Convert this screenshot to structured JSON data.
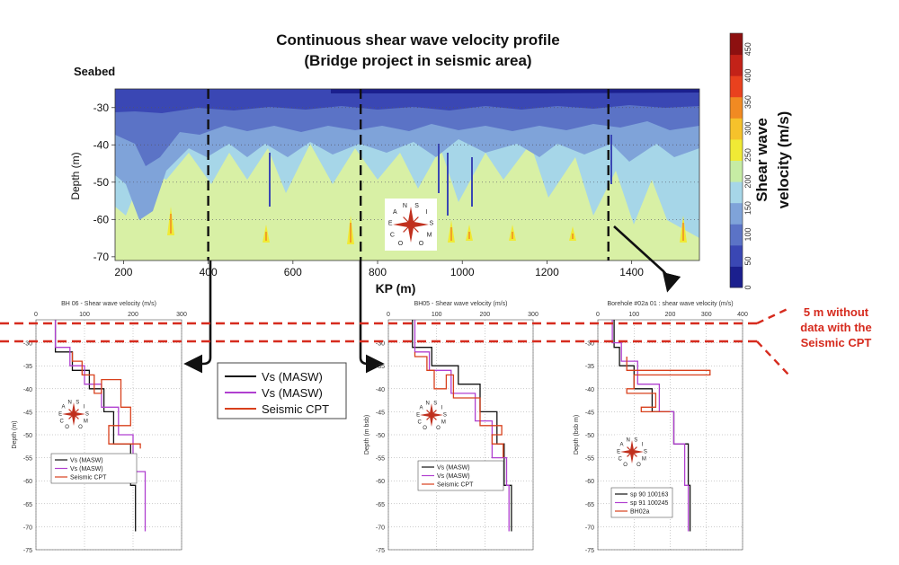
{
  "title_line1": "Continuous shear wave velocity profile",
  "title_line2": "(Bridge project in seismic area)",
  "seabed_label": "Seabed",
  "annotation": [
    "5 m without",
    "data with the",
    "Seismic CPT"
  ],
  "colors": {
    "masw1": "#111111",
    "masw2": "#b040d0",
    "cpt": "#d8401c",
    "annotation": "#d62b1e",
    "scale": [
      "#1b1f8e",
      "#3a47b4",
      "#5b73c6",
      "#7fa3d9",
      "#a6d6e8",
      "#c6eca4",
      "#f0ea35",
      "#f6c22b",
      "#f18a22",
      "#e9411e",
      "#c32218",
      "#8d1010"
    ]
  },
  "compass_text": "OCEAN SISMO",
  "chart_data": [
    {
      "type": "heatmap",
      "title": "Continuous shear wave velocity profile (Bridge project in seismic area)",
      "xlabel": "KP (m)",
      "ylabel": "Depth (m)",
      "xlim": [
        180,
        1560
      ],
      "ylim": [
        -71,
        -25
      ],
      "xticks": [
        "200",
        "400",
        "600",
        "800",
        "1000",
        "1200",
        "1400"
      ],
      "yticks": [
        "-30",
        "-40",
        "-50",
        "-60",
        "-70"
      ],
      "colorbar": {
        "label_line1": "Shear wave",
        "label_line2": "velocity (m/s)",
        "ticks": [
          "0",
          "50",
          "100",
          "150",
          "200",
          "250",
          "300",
          "350",
          "400",
          "450"
        ],
        "range": [
          0,
          480
        ]
      },
      "section_lines_kp": [
        400,
        760,
        1345
      ]
    },
    {
      "type": "line",
      "title": "BH 06 - Shear wave velocity (m/s)",
      "ylabel": "Depth (m)",
      "xlim": [
        0,
        300
      ],
      "ylim": [
        -75,
        -25
      ],
      "xticks": [
        "0",
        "100",
        "200",
        "300"
      ],
      "yticks": [
        "-30",
        "-35",
        "-40",
        "-45",
        "-50",
        "-55",
        "-60",
        "-65",
        "-70",
        "-75"
      ],
      "legend": [
        "Vs (MASW)",
        "Vs (MASW)",
        "Seismic CPT"
      ],
      "series": [
        {
          "name": "Vs (MASW)",
          "points": [
            [
              40,
              -25
            ],
            [
              40,
              -32
            ],
            [
              75,
              -32
            ],
            [
              75,
              -36
            ],
            [
              110,
              -36
            ],
            [
              110,
              -40
            ],
            [
              140,
              -40
            ],
            [
              140,
              -45
            ],
            [
              160,
              -45
            ],
            [
              160,
              -52
            ],
            [
              195,
              -52
            ],
            [
              195,
              -61
            ],
            [
              205,
              -61
            ],
            [
              205,
              -71
            ]
          ]
        },
        {
          "name": "Vs (MASW)",
          "points": [
            [
              40,
              -25
            ],
            [
              40,
              -31
            ],
            [
              70,
              -31
            ],
            [
              70,
              -35
            ],
            [
              100,
              -35
            ],
            [
              100,
              -39
            ],
            [
              135,
              -39
            ],
            [
              135,
              -44
            ],
            [
              170,
              -44
            ],
            [
              170,
              -50
            ],
            [
              200,
              -50
            ],
            [
              200,
              -58
            ],
            [
              225,
              -58
            ],
            [
              225,
              -71
            ]
          ]
        },
        {
          "name": "Seismic CPT",
          "points": [
            [
              75,
              -32
            ],
            [
              75,
              -34
            ],
            [
              95,
              -34
            ],
            [
              95,
              -37
            ],
            [
              120,
              -37
            ],
            [
              120,
              -41
            ],
            [
              135,
              -41
            ],
            [
              135,
              -38
            ],
            [
              175,
              -38
            ],
            [
              175,
              -44
            ],
            [
              195,
              -44
            ],
            [
              195,
              -48
            ],
            [
              150,
              -48
            ],
            [
              150,
              -52
            ],
            [
              215,
              -52
            ],
            [
              215,
              -53
            ]
          ]
        }
      ]
    },
    {
      "type": "line",
      "title": "BH05 - Shear wave velocity (m/s)",
      "ylabel": "Depth (m bsb)",
      "xlim": [
        0,
        300
      ],
      "ylim": [
        -75,
        -25
      ],
      "xticks": [
        "0",
        "100",
        "200",
        "300"
      ],
      "yticks": [
        "-30",
        "-35",
        "-40",
        "-45",
        "-50",
        "-55",
        "-60",
        "-65",
        "-70",
        "-75"
      ],
      "legend": [
        "Vs (MASW)",
        "Vs (MASW)",
        "Seismic CPT"
      ],
      "series": [
        {
          "name": "Vs (MASW)",
          "points": [
            [
              50,
              -25
            ],
            [
              50,
              -31
            ],
            [
              90,
              -31
            ],
            [
              90,
              -35
            ],
            [
              145,
              -35
            ],
            [
              145,
              -39
            ],
            [
              190,
              -39
            ],
            [
              190,
              -45
            ],
            [
              225,
              -45
            ],
            [
              225,
              -52
            ],
            [
              240,
              -52
            ],
            [
              240,
              -61
            ],
            [
              255,
              -61
            ],
            [
              255,
              -71
            ]
          ]
        },
        {
          "name": "Vs (MASW)",
          "points": [
            [
              55,
              -25
            ],
            [
              55,
              -32
            ],
            [
              85,
              -32
            ],
            [
              85,
              -36
            ],
            [
              130,
              -36
            ],
            [
              130,
              -41
            ],
            [
              180,
              -41
            ],
            [
              180,
              -47
            ],
            [
              215,
              -47
            ],
            [
              215,
              -55
            ],
            [
              245,
              -55
            ],
            [
              245,
              -61
            ],
            [
              250,
              -61
            ],
            [
              250,
              -71
            ]
          ]
        },
        {
          "name": "Seismic CPT",
          "points": [
            [
              55,
              -32
            ],
            [
              55,
              -33
            ],
            [
              80,
              -33
            ],
            [
              80,
              -36
            ],
            [
              95,
              -36
            ],
            [
              95,
              -40
            ],
            [
              120,
              -40
            ],
            [
              120,
              -37
            ],
            [
              135,
              -37
            ],
            [
              135,
              -42
            ],
            [
              190,
              -42
            ],
            [
              190,
              -48
            ],
            [
              235,
              -48
            ],
            [
              235,
              -50
            ],
            [
              215,
              -50
            ],
            [
              215,
              -52
            ],
            [
              238,
              -52
            ],
            [
              238,
              -55
            ]
          ]
        }
      ]
    },
    {
      "type": "line",
      "title": "Borehole #02a 01 : shear wave velocity (m/s)",
      "ylabel": "Depth (bsb m)",
      "xlim": [
        0,
        400
      ],
      "ylim": [
        -75,
        -25
      ],
      "xticks": [
        "0",
        "100",
        "200",
        "300",
        "400"
      ],
      "yticks": [
        "-30",
        "-35",
        "-40",
        "-45",
        "-50",
        "-55",
        "-60",
        "-65",
        "-70",
        "-75"
      ],
      "legend": [
        "sp 90 100163",
        "sp 91 100245",
        "BH02a"
      ],
      "series": [
        {
          "name": "sp 90 100163",
          "points": [
            [
              45,
              -25
            ],
            [
              45,
              -31
            ],
            [
              60,
              -31
            ],
            [
              60,
              -35
            ],
            [
              100,
              -35
            ],
            [
              100,
              -40
            ],
            [
              150,
              -40
            ],
            [
              150,
              -45
            ],
            [
              210,
              -45
            ],
            [
              210,
              -52
            ],
            [
              250,
              -52
            ],
            [
              250,
              -61
            ],
            [
              255,
              -61
            ],
            [
              255,
              -71
            ]
          ]
        },
        {
          "name": "sp 91 100245",
          "points": [
            [
              40,
              -25
            ],
            [
              40,
              -30
            ],
            [
              65,
              -30
            ],
            [
              65,
              -34
            ],
            [
              110,
              -34
            ],
            [
              110,
              -39
            ],
            [
              170,
              -39
            ],
            [
              170,
              -45
            ],
            [
              210,
              -45
            ],
            [
              210,
              -52
            ],
            [
              240,
              -52
            ],
            [
              240,
              -61
            ],
            [
              250,
              -61
            ],
            [
              250,
              -71
            ]
          ]
        },
        {
          "name": "BH02a",
          "points": [
            [
              80,
              -33
            ],
            [
              80,
              -36
            ],
            [
              310,
              -36
            ],
            [
              310,
              -37
            ],
            [
              100,
              -37
            ],
            [
              100,
              -40
            ],
            [
              80,
              -40
            ],
            [
              80,
              -41
            ],
            [
              160,
              -41
            ],
            [
              160,
              -44
            ],
            [
              120,
              -44
            ],
            [
              120,
              -45
            ],
            [
              200,
              -45
            ]
          ]
        }
      ]
    }
  ]
}
